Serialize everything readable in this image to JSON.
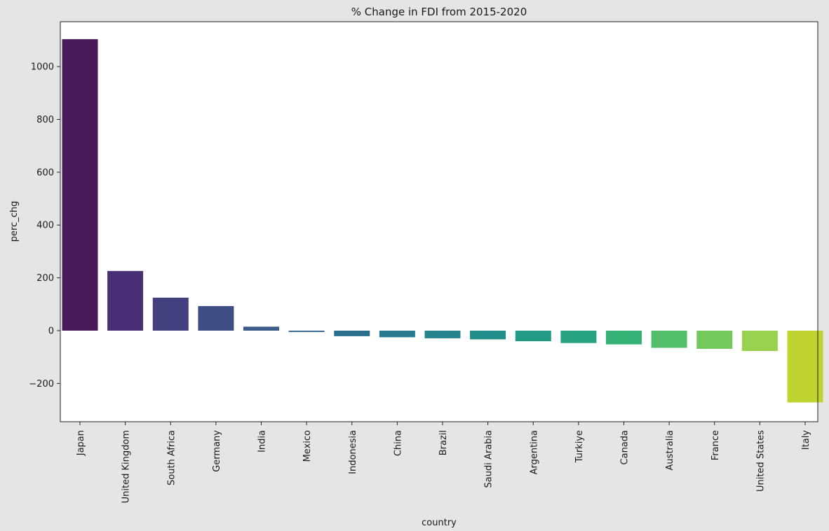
{
  "chart_data": {
    "type": "bar",
    "title": "% Change in FDI from 2015-2020",
    "xlabel": "country",
    "ylabel": "perc_chg",
    "categories": [
      "Japan",
      "United Kingdom",
      "South Africa",
      "Germany",
      "India",
      "Mexico",
      "Indonesia",
      "China",
      "Brazil",
      "Saudi Arabia",
      "Argentina",
      "Turkiye",
      "Canada",
      "Australia",
      "France",
      "United States",
      "Italy"
    ],
    "values": [
      1104,
      226,
      125,
      93,
      15,
      -5,
      -21,
      -25,
      -29,
      -33,
      -40,
      -47,
      -52,
      -65,
      -69,
      -77,
      -272
    ],
    "colors": [
      "#481a5a",
      "#472e75",
      "#443f7f",
      "#3e4d84",
      "#3a5a8a",
      "#33648b",
      "#2c6f8c",
      "#28798d",
      "#24838c",
      "#218e8b",
      "#229a86",
      "#27a47f",
      "#36b277",
      "#53bf6b",
      "#75c85b",
      "#98d24e",
      "#bfd331"
    ],
    "ylim": [
      -345,
      1170
    ],
    "yticks": [
      -200,
      0,
      200,
      400,
      600,
      800,
      1000
    ],
    "ytick_labels": [
      "−200",
      "0",
      "200",
      "400",
      "600",
      "800",
      "1000"
    ],
    "grid": false,
    "legend": "none"
  }
}
